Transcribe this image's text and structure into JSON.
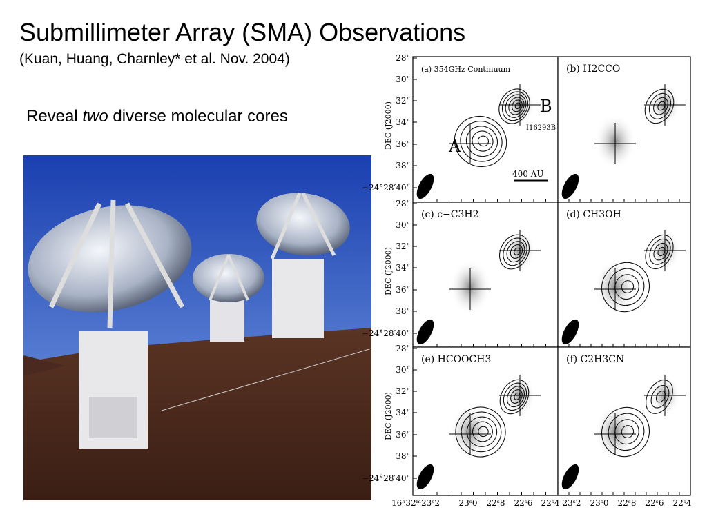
{
  "slide": {
    "title": "Submillimeter Array (SMA) Observations",
    "subtitle": "(Kuan, Huang, Charnley* et al. Nov. 2004)",
    "reveal": {
      "before": "Reveal",
      "emphasis": "two",
      "after": "diverse molecular cores"
    }
  },
  "figure": {
    "panels": [
      "(a) 354GHz Continuum",
      "(b) H2CCO",
      "(c) c−C3H2",
      "(d) CH3OH",
      "(e) HCOOCH3",
      "(f) C2H3CN"
    ],
    "annotations": {
      "core_a": "A",
      "core_b": "B",
      "source": "I16293B",
      "scale": "400 AU"
    },
    "y_axis_label": "DEC (J2000)",
    "y_ticks": [
      "28\"",
      "30\"",
      "32\"",
      "34\"",
      "36\"",
      "38\"",
      "−24°28′40\""
    ],
    "x_ticks": [
      "16ʰ32ᵐ23ˢ2",
      "23ˢ0",
      "22ˢ8",
      "22ˢ6",
      "22ˢ4",
      "23ˢ2",
      "23ˢ0",
      "22ˢ8",
      "22ˢ6",
      "22ˢ4"
    ]
  }
}
